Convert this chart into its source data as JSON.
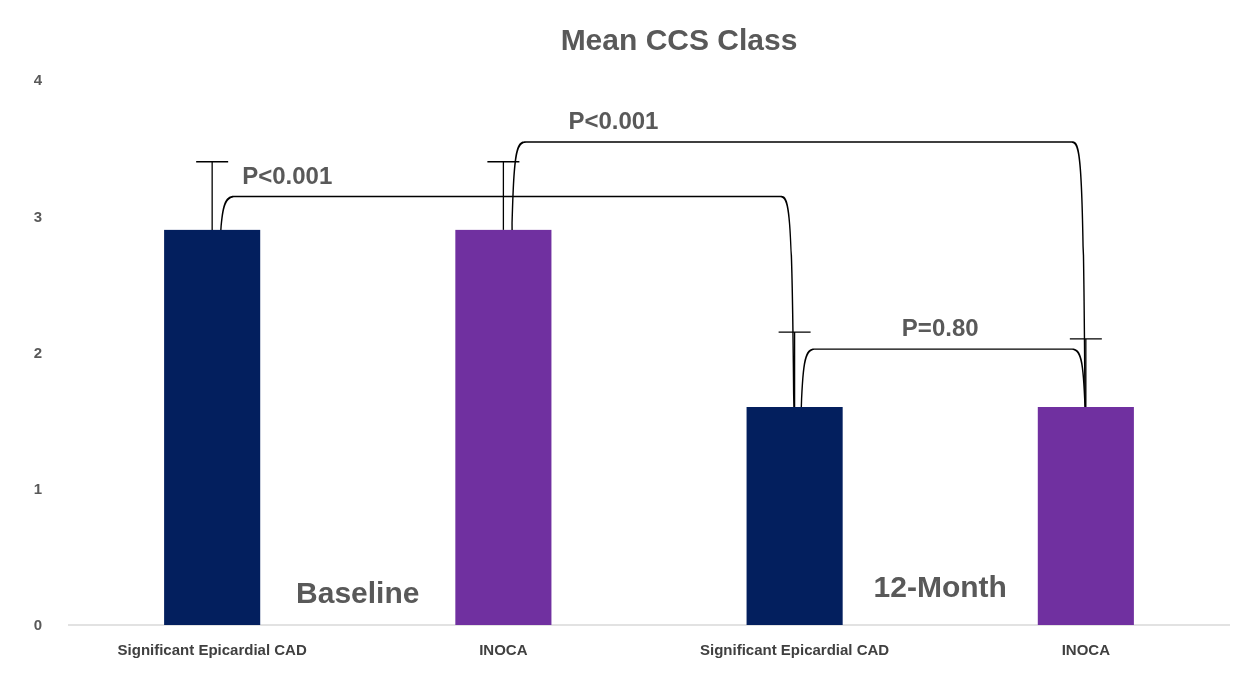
{
  "chart_data": {
    "type": "bar",
    "title": "Mean CCS Class",
    "categories": [
      "Significant Epicardial CAD",
      "INOCA",
      "Significant Epicardial CAD",
      "INOCA"
    ],
    "values": [
      2.9,
      2.9,
      1.6,
      1.6
    ],
    "colors": [
      "#031f5e",
      "#7030a0",
      "#031f5e",
      "#7030a0"
    ],
    "errors": [
      [
        2.9,
        3.4
      ],
      [
        2.9,
        3.4
      ],
      [
        1.6,
        2.15
      ],
      [
        1.6,
        2.1
      ]
    ],
    "ylim": [
      0,
      4
    ],
    "yticks": [
      0,
      1,
      2,
      3,
      4
    ],
    "grid": false,
    "annotations": [
      "P<0.001",
      "P<0.001",
      "P=0.80",
      "Baseline",
      "12-Month"
    ]
  }
}
